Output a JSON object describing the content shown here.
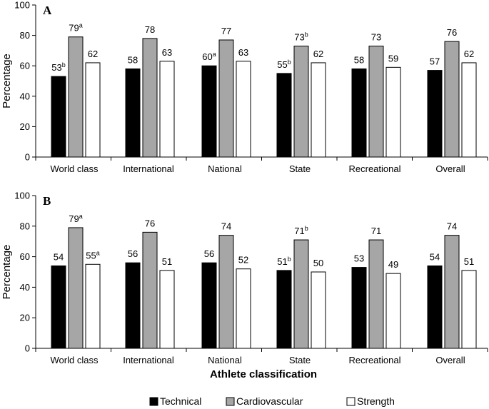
{
  "chart_data": [
    {
      "type": "bar",
      "panel": "A",
      "ylabel": "Percentage",
      "ylim": [
        0,
        100
      ],
      "yticks": [
        "0",
        "20",
        "40",
        "60",
        "80",
        "100"
      ],
      "categories": [
        "World class",
        "International",
        "National",
        "State",
        "Recreational",
        "Overall"
      ],
      "series": [
        {
          "name": "Technical",
          "color": "#000000",
          "values": [
            53,
            58,
            60,
            55,
            58,
            57
          ],
          "labels": [
            "53",
            "58",
            "60",
            "55",
            "58",
            "57"
          ],
          "sup": [
            "b",
            "",
            "a",
            "b",
            "",
            ""
          ]
        },
        {
          "name": "Cardiovascular",
          "color": "#a6a6a6",
          "values": [
            79,
            78,
            77,
            73,
            73,
            76
          ],
          "labels": [
            "79",
            "78",
            "77",
            "73",
            "73",
            "76"
          ],
          "sup": [
            "a",
            "",
            "",
            "b",
            "",
            ""
          ]
        },
        {
          "name": "Strength",
          "color": "#ffffff",
          "values": [
            62,
            63,
            63,
            62,
            59,
            62
          ],
          "labels": [
            "62",
            "63",
            "63",
            "62",
            "59",
            "62"
          ],
          "sup": [
            "",
            "",
            "",
            "",
            "",
            ""
          ]
        }
      ]
    },
    {
      "type": "bar",
      "panel": "B",
      "ylabel": "Percentage",
      "ylim": [
        0,
        100
      ],
      "yticks": [
        "0",
        "20",
        "40",
        "60",
        "80",
        "100"
      ],
      "categories": [
        "World class",
        "International",
        "National",
        "State",
        "Recreational",
        "Overall"
      ],
      "series": [
        {
          "name": "Technical",
          "color": "#000000",
          "values": [
            54,
            56,
            56,
            51,
            53,
            54
          ],
          "labels": [
            "54",
            "56",
            "56",
            "51",
            "53",
            "54"
          ],
          "sup": [
            "",
            "",
            "",
            "b",
            "",
            ""
          ]
        },
        {
          "name": "Cardiovascular",
          "color": "#a6a6a6",
          "values": [
            79,
            76,
            74,
            71,
            71,
            74
          ],
          "labels": [
            "79",
            "76",
            "74",
            "71",
            "71",
            "74"
          ],
          "sup": [
            "a",
            "",
            "",
            "b",
            "",
            ""
          ]
        },
        {
          "name": "Strength",
          "color": "#ffffff",
          "values": [
            55,
            51,
            52,
            50,
            49,
            51
          ],
          "labels": [
            "55",
            "51",
            "52",
            "50",
            "49",
            "51"
          ],
          "sup": [
            "a",
            "",
            "",
            "",
            "",
            ""
          ]
        }
      ]
    }
  ],
  "xlabel": "Athlete classification",
  "legend": [
    "Technical",
    "Cardiovascular",
    "Strength"
  ]
}
